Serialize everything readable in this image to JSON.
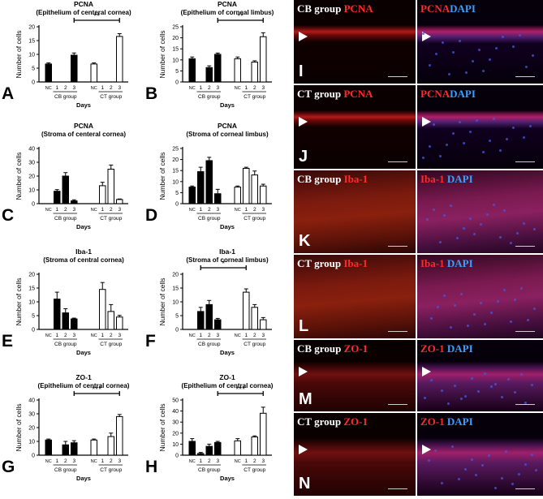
{
  "charts_panels": [
    {
      "letter": "A",
      "title1": "PCNA",
      "title2": "(Epithelium of centeral cornea)",
      "ymax": 20,
      "ticks": [
        0,
        5,
        10,
        15,
        20
      ],
      "values": [
        6.5,
        null,
        null,
        9.7,
        6.5,
        null,
        null,
        16.5
      ],
      "errs": [
        0.4,
        0,
        0,
        0.8,
        0.4,
        0,
        0,
        1.0
      ],
      "sig": "**",
      "sig_from": 3,
      "sig_to": 7
    },
    {
      "letter": "B",
      "title1": "PCNA",
      "title2": "(Epithelium of corneal limbus)",
      "ymax": 25,
      "ticks": [
        0,
        5,
        10,
        15,
        20,
        25
      ],
      "values": [
        10.5,
        null,
        6.5,
        12.5,
        10.5,
        null,
        9,
        20.5
      ],
      "errs": [
        0.8,
        0,
        0.8,
        0.6,
        0.8,
        0,
        0.6,
        1.8
      ],
      "sig": "**",
      "sig_from": 3,
      "sig_to": 7
    },
    {
      "letter": "C",
      "title1": "PCNA",
      "title2": "(Stroma of centeral cornea)",
      "ymax": 40,
      "ticks": [
        0,
        10,
        20,
        30,
        40
      ],
      "values": [
        null,
        9,
        20,
        2,
        null,
        13,
        25,
        3
      ],
      "errs": [
        0,
        1.2,
        2.5,
        0.8,
        0,
        2.5,
        3,
        0.4
      ],
      "sig": "",
      "sig_from": 0,
      "sig_to": 0
    },
    {
      "letter": "D",
      "title1": "PCNA",
      "title2": "(Stroma of corneal limbus)",
      "ymax": 25,
      "ticks": [
        0,
        5,
        10,
        15,
        20,
        25
      ],
      "values": [
        7.5,
        14.5,
        19.5,
        4.5,
        7.5,
        16,
        13,
        8
      ],
      "errs": [
        0.5,
        2,
        1.5,
        2,
        0.5,
        0.5,
        1.8,
        0.8
      ],
      "sig": "",
      "sig_from": 0,
      "sig_to": 0
    },
    {
      "letter": "E",
      "title1": "Iba-1",
      "title2": "(Stroma of central cornea)",
      "ymax": 20,
      "ticks": [
        0,
        5,
        10,
        15,
        20
      ],
      "values": [
        null,
        11,
        6,
        3.8,
        null,
        14.5,
        6.5,
        4.5
      ],
      "errs": [
        0,
        2.5,
        1.5,
        0.3,
        0,
        2.5,
        2.5,
        0.6
      ],
      "sig": "",
      "sig_from": 0,
      "sig_to": 0
    },
    {
      "letter": "F",
      "title1": "Iba-1",
      "title2": "(Stroma of corneal limbus)",
      "ymax": 20,
      "ticks": [
        0,
        5,
        10,
        15,
        20
      ],
      "values": [
        null,
        6.5,
        9,
        3.5,
        null,
        13.5,
        8,
        3.5
      ],
      "errs": [
        0,
        1.5,
        1.5,
        0.5,
        0,
        1.2,
        1,
        0.8
      ],
      "sig": "*",
      "sig_from": 1,
      "sig_to": 5
    },
    {
      "letter": "G",
      "title1": "ZO-1",
      "title2": "(Epithelium of central cornea)",
      "ymax": 40,
      "ticks": [
        0,
        10,
        20,
        30,
        40
      ],
      "values": [
        11,
        null,
        7.5,
        9,
        11,
        null,
        13.5,
        28
      ],
      "errs": [
        0.7,
        0,
        2.5,
        1.5,
        0.7,
        0,
        2.5,
        1.5
      ],
      "sig": "***",
      "sig_from": 3,
      "sig_to": 7
    },
    {
      "letter": "H",
      "title1": "ZO-1",
      "title2": "(Epithelium of central cornea)",
      "ymax": 50,
      "ticks": [
        0,
        10,
        20,
        30,
        40,
        50
      ],
      "values": [
        12.5,
        1.5,
        8,
        11.5,
        13,
        null,
        16.5,
        38
      ],
      "errs": [
        2.5,
        1,
        2,
        1,
        2,
        0,
        1,
        5.5
      ],
      "sig": "***",
      "sig_from": 3,
      "sig_to": 7
    }
  ],
  "axis": {
    "ylabel": "Number of cells",
    "xticks": [
      "NC",
      "1",
      "2",
      "3",
      "NC",
      "1",
      "2",
      "3"
    ],
    "group1": "CB group",
    "group2": "CT group",
    "xlabel": "Days"
  },
  "micrographs": [
    {
      "letter": "I",
      "text_white": "CB group ",
      "text_red": "PCNA",
      "text2_red": "PCNA",
      "text2_blue": "DAPI",
      "tone": "pcna"
    },
    {
      "letter": "J",
      "text_white": "CT group ",
      "text_red": "PCNA",
      "text2_red": "PCNA",
      "text2_blue": "DAPI",
      "tone": "pcna"
    },
    {
      "letter": "K",
      "text_white": "CB group ",
      "text_red": "Iba-1",
      "text2_red": "Iba-1 ",
      "text2_blue": "DAPI",
      "tone": "iba"
    },
    {
      "letter": "L",
      "text_white": "CT group ",
      "text_red": "Iba-1",
      "text2_red": "Iba-1 ",
      "text2_blue": "DAPI",
      "tone": "iba"
    },
    {
      "letter": "M",
      "text_white": "CB group ",
      "text_red": "ZO-1",
      "text2_red": "ZO-1 ",
      "text2_blue": "DAPI",
      "tone": "zo"
    },
    {
      "letter": "N",
      "text_white": "CT group ",
      "text_red": "ZO-1",
      "text2_red": "ZO-1 ",
      "text2_blue": "DAPI",
      "tone": "zo"
    }
  ],
  "chart_data": [
    {
      "type": "bar",
      "title": "PCNA (Epithelium of centeral cornea)",
      "categories": [
        "NC",
        "1",
        "2",
        "3",
        "NC",
        "1",
        "2",
        "3"
      ],
      "values": [
        6.5,
        null,
        null,
        9.7,
        6.5,
        null,
        null,
        16.5
      ],
      "ylabel": "Number of cells",
      "xlabel": "Days",
      "ylim": [
        0,
        20
      ]
    },
    {
      "type": "bar",
      "title": "PCNA (Epithelium of corneal limbus)",
      "categories": [
        "NC",
        "1",
        "2",
        "3",
        "NC",
        "1",
        "2",
        "3"
      ],
      "values": [
        10.5,
        null,
        6.5,
        12.5,
        10.5,
        null,
        9,
        20.5
      ],
      "ylabel": "Number of cells",
      "xlabel": "Days",
      "ylim": [
        0,
        25
      ]
    },
    {
      "type": "bar",
      "title": "PCNA (Stroma of centeral cornea)",
      "categories": [
        "NC",
        "1",
        "2",
        "3",
        "NC",
        "1",
        "2",
        "3"
      ],
      "values": [
        null,
        9,
        20,
        2,
        null,
        13,
        25,
        3
      ],
      "ylabel": "Number of cells",
      "xlabel": "Days",
      "ylim": [
        0,
        40
      ]
    },
    {
      "type": "bar",
      "title": "PCNA (Stroma of corneal limbus)",
      "categories": [
        "NC",
        "1",
        "2",
        "3",
        "NC",
        "1",
        "2",
        "3"
      ],
      "values": [
        7.5,
        14.5,
        19.5,
        4.5,
        7.5,
        16,
        13,
        8
      ],
      "ylabel": "Number of cells",
      "xlabel": "Days",
      "ylim": [
        0,
        25
      ]
    },
    {
      "type": "bar",
      "title": "Iba-1 (Stroma of central cornea)",
      "categories": [
        "NC",
        "1",
        "2",
        "3",
        "NC",
        "1",
        "2",
        "3"
      ],
      "values": [
        null,
        11,
        6,
        3.8,
        null,
        14.5,
        6.5,
        4.5
      ],
      "ylabel": "Number of cells",
      "xlabel": "Days",
      "ylim": [
        0,
        20
      ]
    },
    {
      "type": "bar",
      "title": "Iba-1 (Stroma of corneal limbus)",
      "categories": [
        "NC",
        "1",
        "2",
        "3",
        "NC",
        "1",
        "2",
        "3"
      ],
      "values": [
        null,
        6.5,
        9,
        3.5,
        null,
        13.5,
        8,
        3.5
      ],
      "ylabel": "Number of cells",
      "xlabel": "Days",
      "ylim": [
        0,
        20
      ]
    },
    {
      "type": "bar",
      "title": "ZO-1 (Epithelium of central cornea)",
      "categories": [
        "NC",
        "1",
        "2",
        "3",
        "NC",
        "1",
        "2",
        "3"
      ],
      "values": [
        11,
        null,
        7.5,
        9,
        11,
        null,
        13.5,
        28
      ],
      "ylabel": "Number of cells",
      "xlabel": "Days",
      "ylim": [
        0,
        40
      ]
    },
    {
      "type": "bar",
      "title": "ZO-1 (Epithelium of central cornea)",
      "categories": [
        "NC",
        "1",
        "2",
        "3",
        "NC",
        "1",
        "2",
        "3"
      ],
      "values": [
        12.5,
        1.5,
        8,
        11.5,
        13,
        null,
        16.5,
        38
      ],
      "ylabel": "Number of cells",
      "xlabel": "Days",
      "ylim": [
        0,
        50
      ]
    }
  ]
}
